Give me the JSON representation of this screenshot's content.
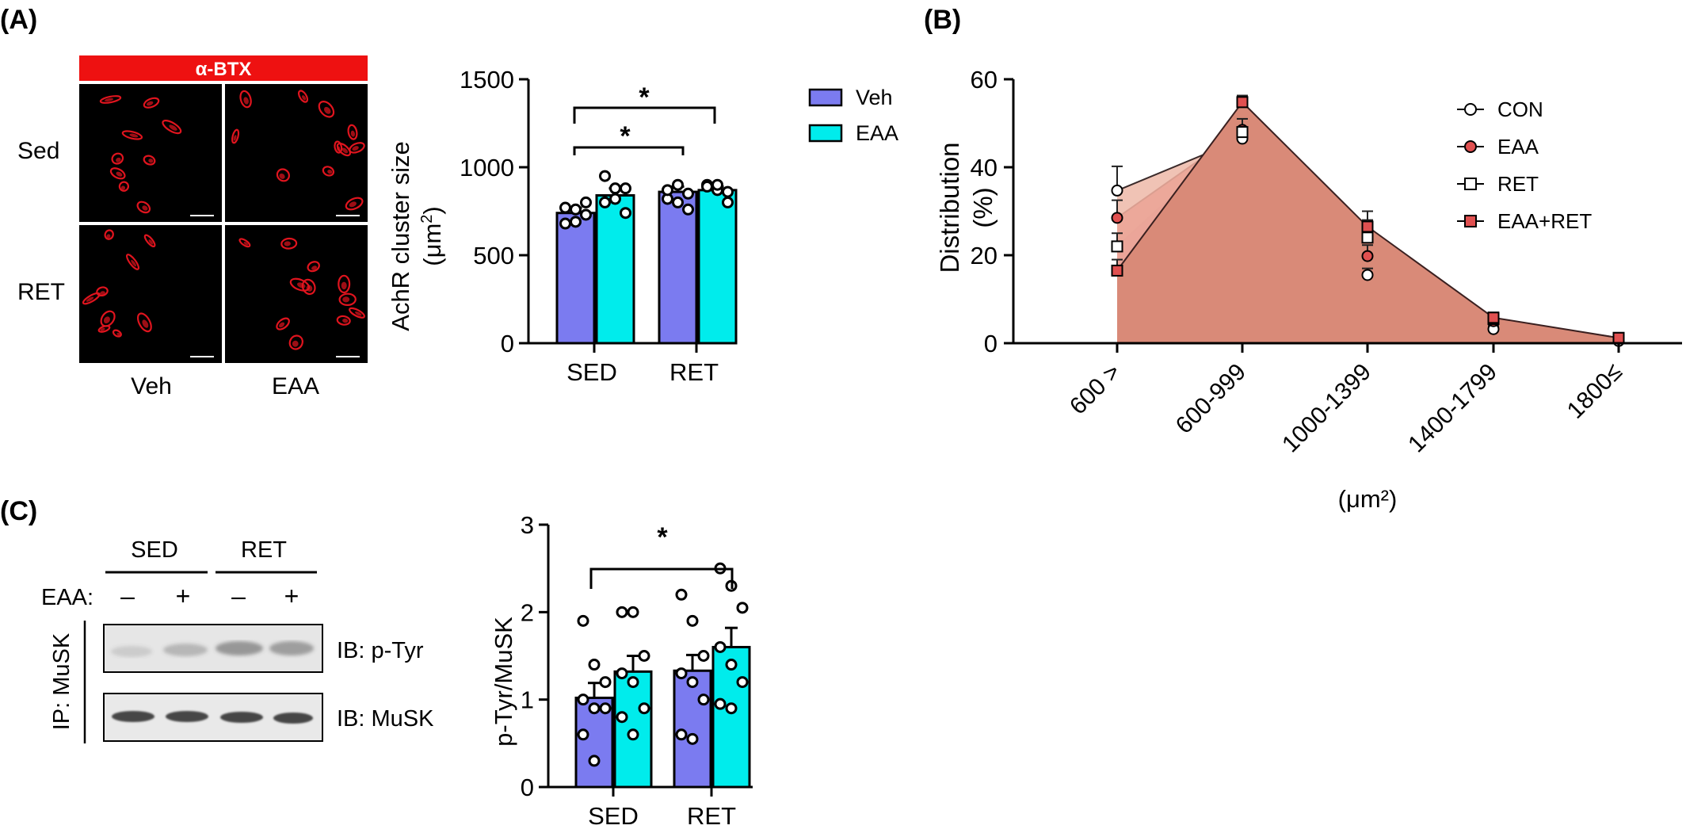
{
  "colors": {
    "veh": "#7b7bf0",
    "eaa_bar": "#00ecec",
    "con_fill": "#edb9a8",
    "eaa_fill": "#e23a3a",
    "ret_fill": "#8a2aa0",
    "eaaret_fill": "#d98a78",
    "btx_banner": "#ee1111",
    "axon_red": "#e0141e"
  },
  "panel_a": {
    "label": "(A)",
    "banner": "α-BTX",
    "row_labels": [
      "Sed",
      "RET"
    ],
    "col_labels": [
      "Veh",
      "EAA"
    ],
    "chart_data": {
      "type": "bar",
      "categories": [
        "SED",
        "RET"
      ],
      "series": [
        {
          "name": "Veh",
          "values": [
            740,
            860
          ],
          "errors": [
            30,
            30
          ],
          "points": [
            [
              770,
              760,
              730,
              680,
              690,
              800
            ],
            [
              820,
              800,
              760,
              870,
              900,
              850
            ]
          ]
        },
        {
          "name": "EAA",
          "values": [
            840,
            870
          ],
          "errors": [
            40,
            20
          ],
          "points": [
            [
              800,
              820,
              880,
              950,
              880,
              740
            ],
            [
              900,
              870,
              860,
              890,
              900,
              800
            ]
          ]
        }
      ],
      "ylabel": "AchR cluster size (μm2)",
      "ylim": [
        0,
        1500
      ],
      "yticks": [
        "0",
        "500",
        "1000",
        "1500"
      ],
      "significance": [
        "*",
        "*"
      ],
      "legend": "top-right"
    }
  },
  "panel_b": {
    "label": "(B)",
    "chart_data": {
      "type": "area",
      "categories": [
        "600 >",
        "600-999",
        "1000-1399",
        "1400-1799",
        "1800≤"
      ],
      "series": [
        {
          "name": "CON",
          "values": [
            34.7,
            46.5,
            15.5,
            3.2,
            0.5
          ],
          "errors": [
            5.5,
            2,
            1.5,
            0.8,
            0.5
          ]
        },
        {
          "name": "EAA",
          "values": [
            28.5,
            48.5,
            19.8,
            5.0,
            1.0
          ],
          "errors": [
            4,
            2.5,
            2.5,
            1,
            0.5
          ]
        },
        {
          "name": "RET",
          "values": [
            22.0,
            48.0,
            24.0,
            5.5,
            1.2
          ],
          "errors": [
            3,
            3,
            4,
            1.5,
            0.5
          ]
        },
        {
          "name": "EAA+RET",
          "values": [
            16.5,
            54.8,
            26.5,
            5.8,
            1.2
          ],
          "errors": [
            2.5,
            1.5,
            3.5,
            1,
            0.5
          ]
        }
      ],
      "ylabel": "Distribution (%)",
      "xlabel": "(μm²)",
      "ylim": [
        0,
        60
      ],
      "yticks": [
        "0",
        "20",
        "40",
        "60"
      ],
      "legend": "top-right"
    }
  },
  "panel_c": {
    "label": "(C)",
    "blot": {
      "groups": [
        "SED",
        "RET"
      ],
      "eaa_label": "EAA:",
      "signs": [
        "–",
        "+",
        "–",
        "+"
      ],
      "ip_label": "IP: MuSK",
      "ib_labels": [
        "IB: p-Tyr",
        "IB: MuSK"
      ]
    },
    "chart_data": {
      "type": "bar",
      "categories": [
        "SED",
        "RET"
      ],
      "series": [
        {
          "name": "Veh",
          "values": [
            1.02,
            1.33
          ],
          "errors": [
            0.17,
            0.18
          ],
          "points": [
            [
              1.9,
              1.4,
              1.2,
              1.0,
              0.9,
              0.9,
              0.6,
              0.3
            ],
            [
              2.2,
              1.9,
              1.5,
              1.3,
              1.2,
              1.0,
              0.6,
              0.55
            ]
          ]
        },
        {
          "name": "EAA",
          "values": [
            1.32,
            1.6
          ],
          "errors": [
            0.18,
            0.22
          ],
          "points": [
            [
              2.0,
              2.0,
              1.5,
              1.3,
              1.2,
              0.9,
              0.8,
              0.6
            ],
            [
              2.5,
              2.3,
              2.05,
              1.6,
              1.4,
              1.2,
              0.95,
              0.9
            ]
          ]
        }
      ],
      "ylabel": "p-Tyr/MuSK",
      "ylim": [
        0,
        3
      ],
      "yticks": [
        "0",
        "1",
        "2",
        "3"
      ],
      "significance": [
        "*"
      ]
    }
  }
}
